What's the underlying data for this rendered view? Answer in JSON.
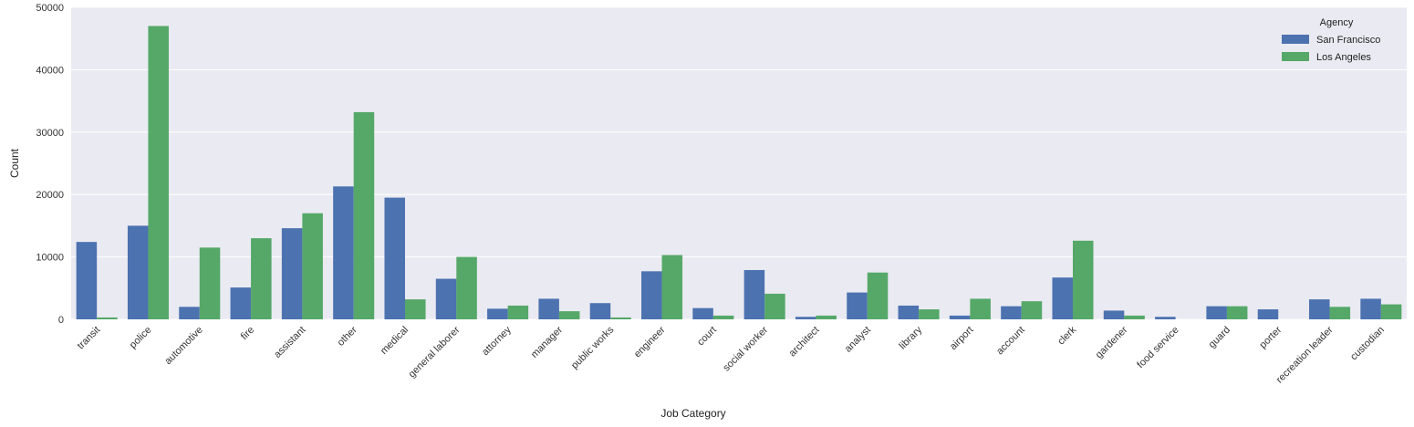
{
  "chart_data": {
    "type": "bar",
    "xlabel": "Job Category",
    "ylabel": "Count",
    "ylim": [
      0,
      50000
    ],
    "yticks": [
      0,
      10000,
      20000,
      30000,
      40000,
      50000
    ],
    "grid": true,
    "legend": {
      "title": "Agency",
      "position": "top-right"
    },
    "categories": [
      "transit",
      "police",
      "automotive",
      "fire",
      "assistant",
      "other",
      "medical",
      "general laborer",
      "attorney",
      "manager",
      "public works",
      "engineer",
      "court",
      "social worker",
      "architect",
      "analyst",
      "library",
      "airport",
      "account",
      "clerk",
      "gardener",
      "food service",
      "guard",
      "porter",
      "recreation leader",
      "custodian"
    ],
    "series": [
      {
        "name": "San Francisco",
        "color": "#4c72b0",
        "values": [
          12400,
          15000,
          2000,
          5100,
          14600,
          21300,
          19500,
          6500,
          1700,
          3300,
          2600,
          7700,
          1800,
          7900,
          400,
          4300,
          2200,
          600,
          2100,
          6700,
          1400,
          400,
          2100,
          1600,
          3200,
          3300
        ]
      },
      {
        "name": "Los Angeles",
        "color": "#55a868",
        "values": [
          300,
          47000,
          11500,
          13000,
          17000,
          33200,
          3200,
          10000,
          2200,
          1300,
          300,
          10300,
          600,
          4100,
          600,
          7500,
          1600,
          3300,
          2900,
          12600,
          600,
          0,
          2100,
          0,
          2000,
          2400
        ]
      }
    ]
  },
  "style": {
    "plot_background": "#eaeaf2",
    "grid_color": "#ffffff"
  }
}
